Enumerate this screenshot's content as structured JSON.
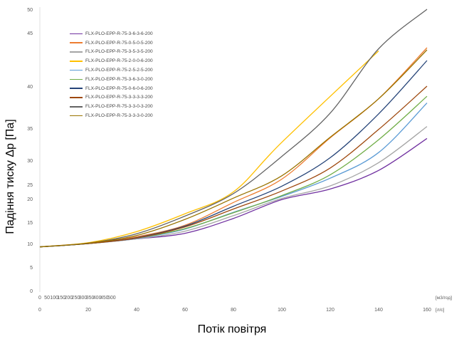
{
  "chart_data": {
    "type": "line",
    "title": "",
    "ylabel": "Падіння тиску Δp [Па]",
    "xlabel": "Потік повітря",
    "x_unit_top": "[м3/год]",
    "x_unit_bottom": "[л/с]",
    "x_ticks_top": [
      0,
      50,
      100,
      150,
      200,
      250,
      300,
      350,
      400,
      450,
      500
    ],
    "x_ticks_bottom": [
      0,
      20,
      40,
      60,
      80,
      100,
      120,
      140,
      160
    ],
    "y_ticks": [
      0,
      5,
      10,
      15,
      20,
      25,
      30,
      35,
      40,
      45,
      50
    ],
    "xlim": [
      0,
      160
    ],
    "ylim": [
      0,
      50
    ],
    "grid": false,
    "legend_position": "top-left",
    "series": [
      {
        "name": "FLX-PLO-EPP-R-75-3-6-3-6-200",
        "color": "#7030a0",
        "x": [
          0,
          20,
          40,
          60,
          80,
          100,
          120,
          140,
          160
        ],
        "y": [
          9.3,
          10,
          11.1,
          12.4,
          15.8,
          19.8,
          23.4,
          27.9,
          33.4
        ]
      },
      {
        "name": "FLX-PLO-EPP-R-75-0-5-0-5-200",
        "color": "#ed7d31",
        "x": [
          0,
          20,
          40,
          60,
          80,
          100,
          120,
          140,
          160
        ],
        "y": [
          9.3,
          10.1,
          11.6,
          14.3,
          19.2,
          26.1,
          33.5,
          38.5,
          43.6
        ]
      },
      {
        "name": "FLX-PLO-EPP-R-75-3-5-3-5-200",
        "color": "#a5a5a5",
        "x": [
          0,
          20,
          40,
          60,
          80,
          100,
          120,
          140,
          160
        ],
        "y": [
          9.3,
          10,
          11.1,
          12.9,
          16.4,
          20.1,
          24.5,
          29.5,
          35.2
        ]
      },
      {
        "name": "FLX-PLO-EPP-R-75-2-0-0-6-200",
        "color": "#ffc000",
        "x": [
          0,
          20,
          40,
          60,
          80,
          100,
          140
        ],
        "y": [
          9.3,
          10.2,
          12.8,
          16.8,
          22.4,
          32.8,
          43.3
        ]
      },
      {
        "name": "FLX-PLO-EPP-R-75-2-5-2-5-200",
        "color": "#5b9bd5",
        "x": [
          0,
          20,
          40,
          60,
          80,
          100,
          120,
          140,
          160
        ],
        "y": [
          9.3,
          10,
          11.2,
          13.4,
          17.1,
          20.8,
          26.3,
          31.2,
          38.0
        ]
      },
      {
        "name": "FLX-PLO-EPP-R-75-3-6-3-0-200",
        "color": "#70ad47",
        "x": [
          0,
          20,
          40,
          60,
          80,
          100,
          120,
          140,
          160
        ],
        "y": [
          9.3,
          10,
          11.3,
          13.5,
          17.0,
          21.1,
          27.0,
          33.2,
          38.8
        ]
      },
      {
        "name": "FLX-PLO-EPP-R-75-0-6-0-6-200",
        "color": "#264478",
        "x": [
          0,
          20,
          40,
          60,
          80,
          100,
          120,
          140,
          160
        ],
        "y": [
          9.3,
          10,
          11.4,
          14.1,
          18.4,
          24.4,
          30.4,
          36.7,
          42.4
        ]
      },
      {
        "name": "FLX-PLO-EPP-R-75-3-3-3-3-200",
        "color": "#9e480e",
        "x": [
          0,
          20,
          40,
          60,
          80,
          100,
          120,
          140,
          160
        ],
        "y": [
          9.3,
          10,
          11.3,
          13.9,
          17.8,
          22.7,
          28.4,
          34.8,
          40.0
        ]
      },
      {
        "name": "FLX-PLO-EPP-R-75-3-3-0-3-200",
        "color": "#636363",
        "x": [
          0,
          20,
          40,
          60,
          80,
          100,
          120,
          140,
          160
        ],
        "y": [
          9.3,
          10.1,
          12.3,
          16.3,
          21.8,
          30.6,
          36.8,
          43.5,
          50.0
        ]
      },
      {
        "name": "FLX-PLO-EPP-R-75-3-3-3-0-200",
        "color": "#997300",
        "x": [
          0,
          20,
          40,
          60,
          80,
          100,
          120,
          140,
          160
        ],
        "y": [
          9.3,
          10.1,
          11.9,
          15.6,
          20.2,
          26.8,
          33.6,
          38.5,
          43.4
        ]
      }
    ]
  }
}
